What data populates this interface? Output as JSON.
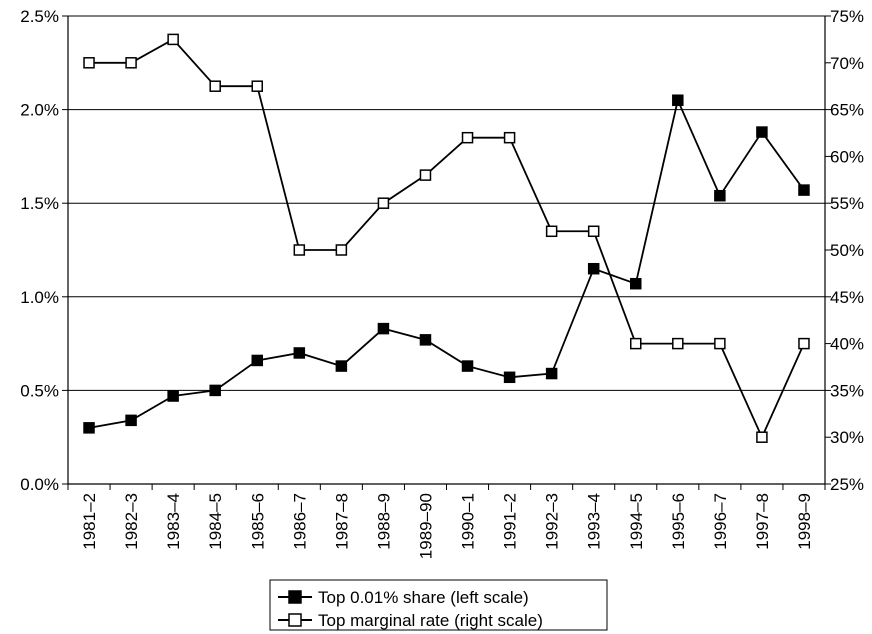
{
  "chart_data": {
    "type": "line",
    "categories": [
      "1981–2",
      "1982–3",
      "1983–4",
      "1984–5",
      "1985–6",
      "1986–7",
      "1987–8",
      "1988–9",
      "1989–90",
      "1990–1",
      "1991–2",
      "1992–3",
      "1993–4",
      "1994–5",
      "1995–6",
      "1996–7",
      "1997–8",
      "1998–9"
    ],
    "series": [
      {
        "name": "Top 0.01% share (left scale)",
        "axis": "left",
        "marker": "filled-square",
        "color": "#000000",
        "values": [
          0.3,
          0.34,
          0.47,
          0.5,
          0.66,
          0.7,
          0.63,
          0.83,
          0.77,
          0.63,
          0.57,
          0.59,
          1.15,
          1.07,
          2.05,
          1.54,
          1.88,
          1.57
        ]
      },
      {
        "name": "Top marginal rate (right scale)",
        "axis": "right",
        "marker": "open-square",
        "color": "#000000",
        "values": [
          70,
          70,
          72.5,
          67.5,
          67.5,
          50,
          50,
          55,
          58,
          62,
          62,
          52,
          52,
          40,
          40,
          40,
          30,
          40
        ]
      }
    ],
    "left_axis": {
      "ylim": [
        0,
        2.5
      ],
      "ticks": [
        0,
        0.5,
        1.0,
        1.5,
        2.0,
        2.5
      ],
      "tick_labels": [
        "0.0%",
        "0.5%",
        "1.0%",
        "1.5%",
        "2.0%",
        "2.5%"
      ]
    },
    "right_axis": {
      "ylim": [
        25,
        75
      ],
      "ticks": [
        25,
        30,
        35,
        40,
        45,
        50,
        55,
        60,
        65,
        70,
        75
      ],
      "tick_labels": [
        "25%",
        "30%",
        "35%",
        "40%",
        "45%",
        "50%",
        "55%",
        "60%",
        "65%",
        "70%",
        "75%"
      ]
    },
    "grid": "horizontal",
    "legend_position": "bottom-center"
  }
}
